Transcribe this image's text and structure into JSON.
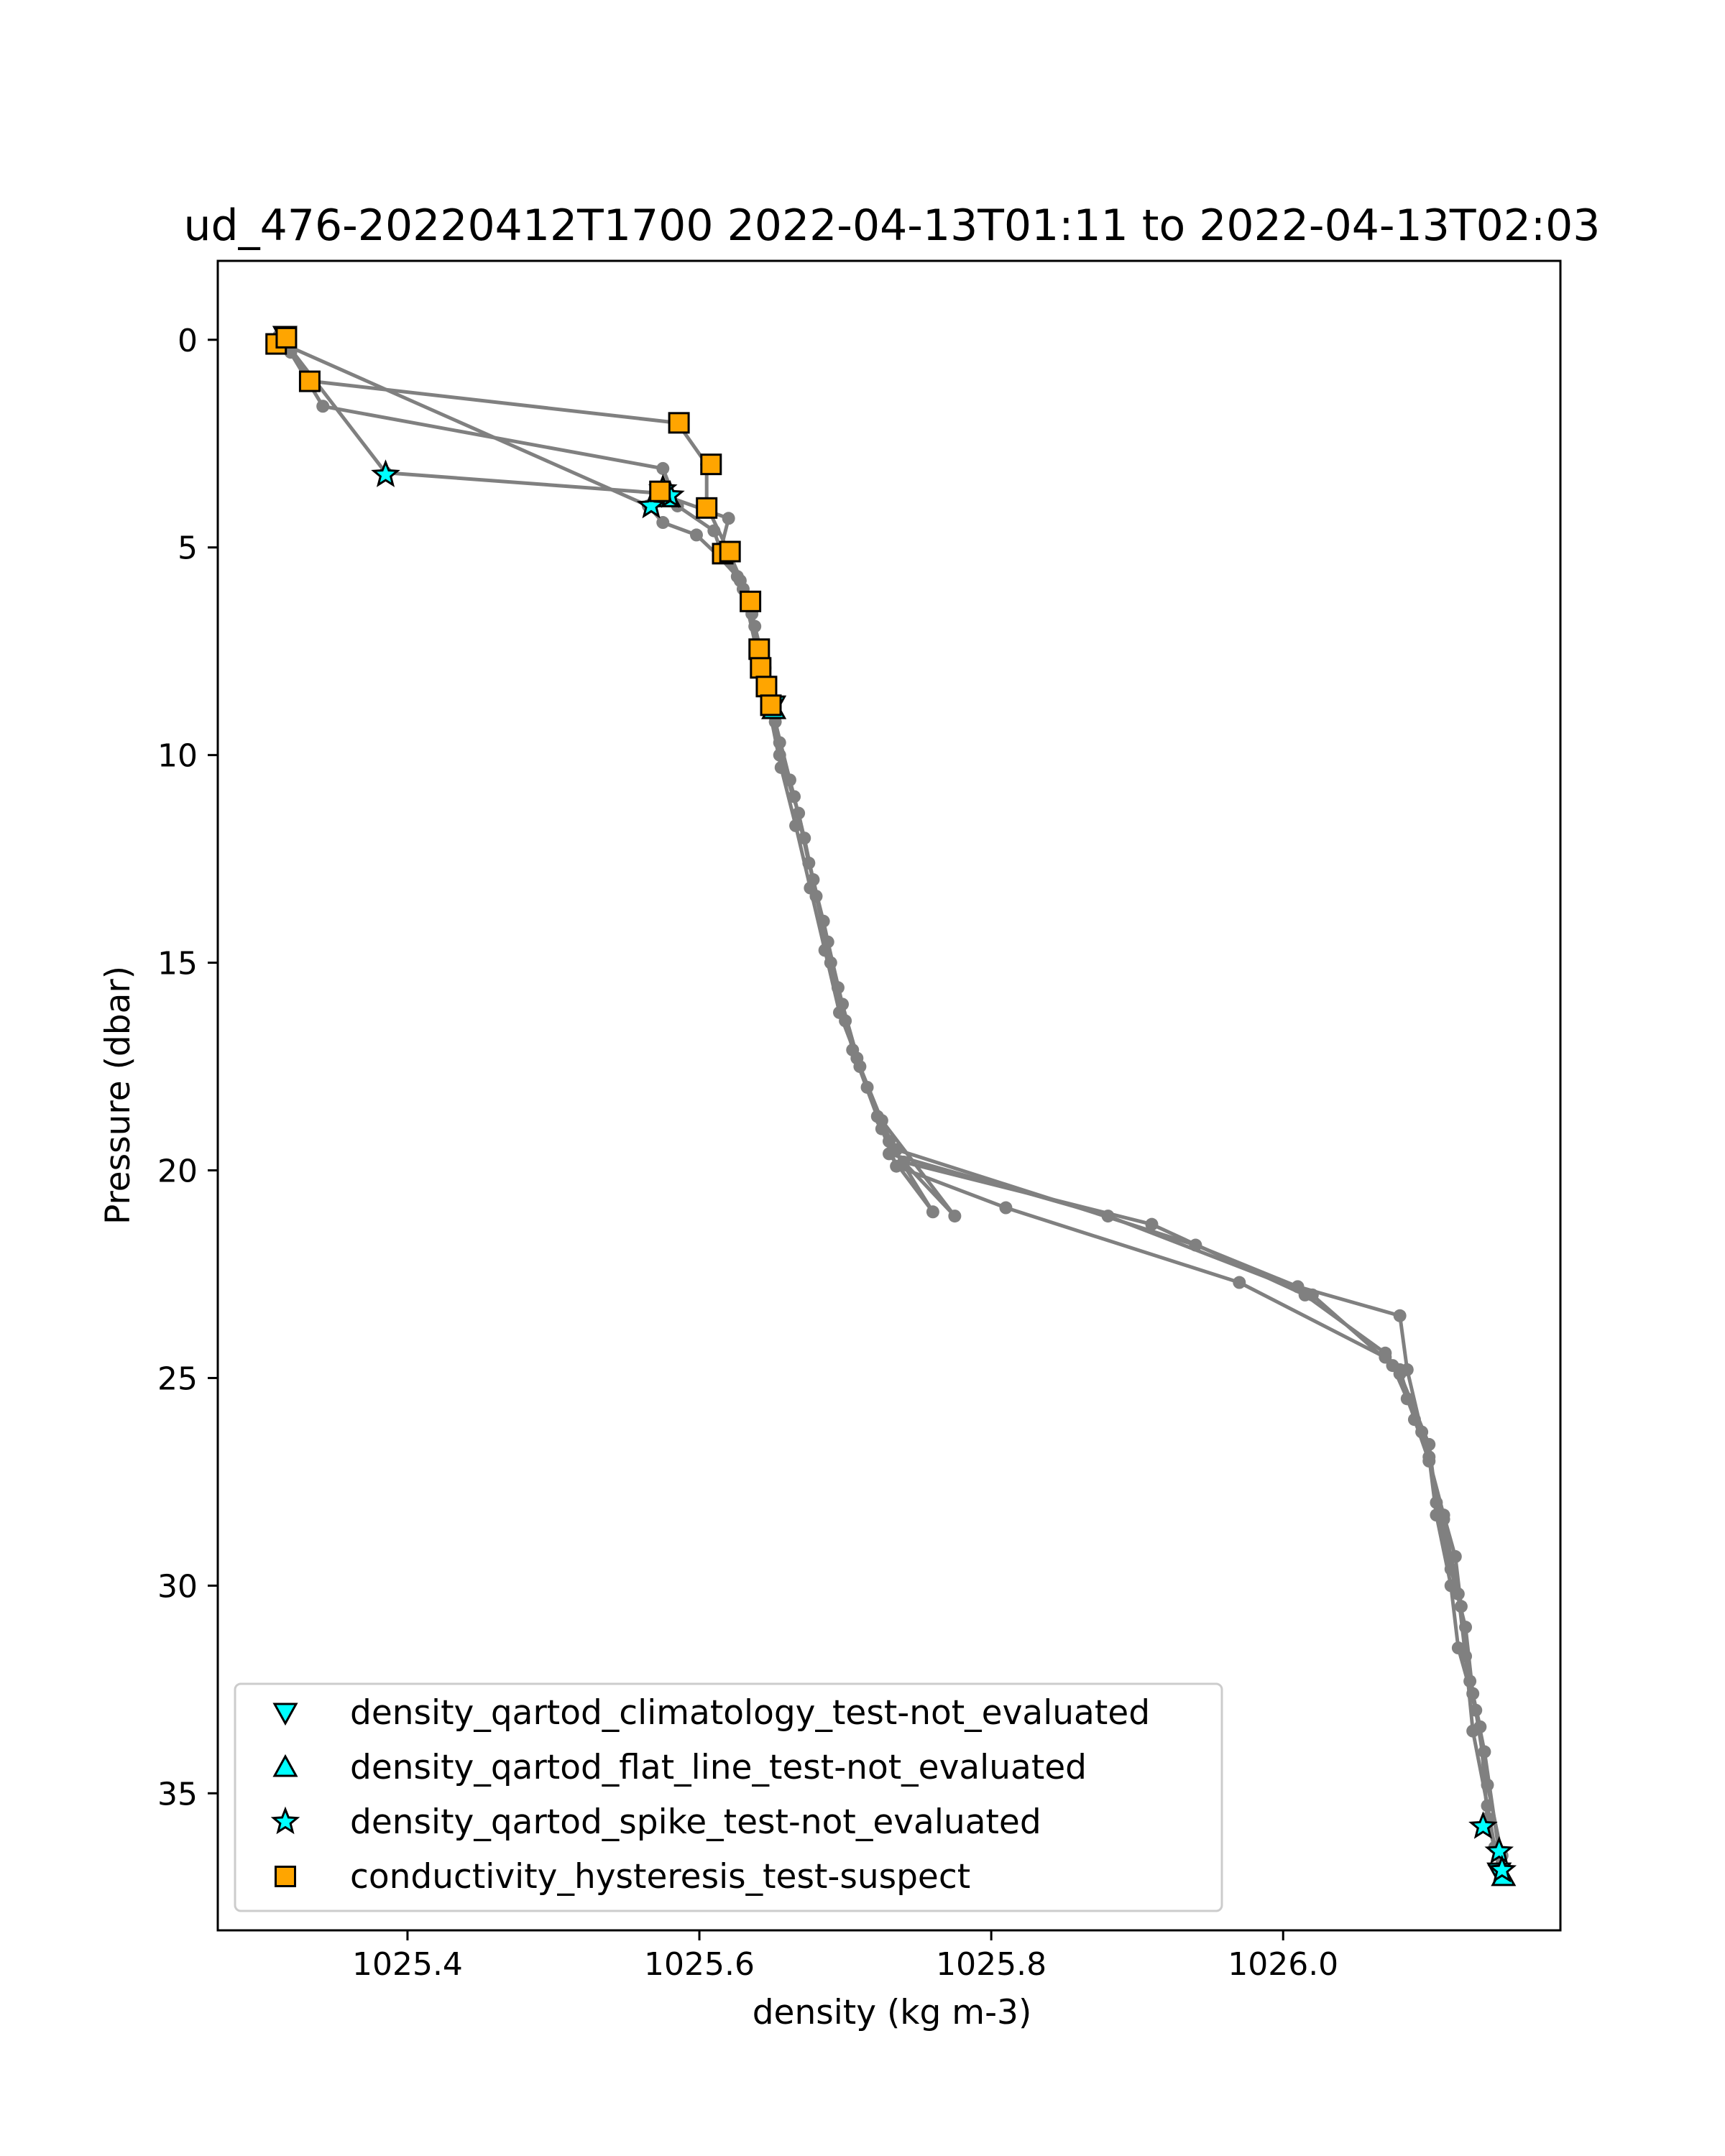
{
  "chart_data": {
    "type": "scatter",
    "title": "ud_476-20220412T1700 2022-04-13T01:11 to 2022-04-13T02:03",
    "xlabel": "density (kg m-3)",
    "ylabel": "Pressure (dbar)",
    "xlim": [
      1025.27,
      1026.19
    ],
    "ylim": [
      38.3,
      -1.9
    ],
    "y_inverted": true,
    "xticks": [
      1025.4,
      1025.6,
      1025.8,
      1026.0
    ],
    "xtick_labels": [
      "1025.4",
      "1025.6",
      "1025.8",
      "1026.0"
    ],
    "yticks": [
      0,
      5,
      10,
      15,
      20,
      25,
      30,
      35
    ],
    "ytick_labels": [
      "0",
      "5",
      "10",
      "15",
      "20",
      "25",
      "30",
      "35"
    ],
    "grid": false,
    "legend_position": "lower-left",
    "colors": {
      "profile_line": "#808080",
      "flag_cyan": "#00ffff",
      "flag_orange": "#ffa500",
      "marker_edge": "#000000"
    },
    "profiles": [
      {
        "points": [
          [
            1025.315,
            0.0
          ],
          [
            1025.32,
            0.3
          ],
          [
            1025.335,
            1.0
          ],
          [
            1025.585,
            2.0
          ],
          [
            1025.605,
            3.0
          ],
          [
            1025.605,
            4.0
          ],
          [
            1025.62,
            5.1
          ],
          [
            1025.635,
            6.3
          ],
          [
            1025.64,
            7.4
          ],
          [
            1025.645,
            8.4
          ],
          [
            1025.65,
            8.8
          ],
          [
            1025.655,
            9.7
          ],
          [
            1025.665,
            11.0
          ],
          [
            1025.675,
            12.6
          ],
          [
            1025.685,
            14.0
          ],
          [
            1025.695,
            15.6
          ],
          [
            1025.705,
            17.1
          ],
          [
            1025.725,
            19.0
          ],
          [
            1025.735,
            19.9
          ],
          [
            1025.81,
            20.9
          ],
          [
            1025.97,
            22.7
          ],
          [
            1026.07,
            24.5
          ],
          [
            1026.08,
            24.8
          ],
          [
            1026.09,
            26.0
          ],
          [
            1026.1,
            27.0
          ],
          [
            1026.11,
            28.4
          ],
          [
            1026.12,
            30.2
          ],
          [
            1026.125,
            31.7
          ],
          [
            1026.13,
            33.5
          ],
          [
            1026.14,
            35.3
          ],
          [
            1026.145,
            36.3
          ]
        ]
      },
      {
        "points": [
          [
            1025.312,
            -0.1
          ],
          [
            1025.318,
            0.2
          ],
          [
            1025.342,
            1.6
          ],
          [
            1025.575,
            3.1
          ],
          [
            1025.585,
            4.0
          ],
          [
            1025.61,
            4.6
          ],
          [
            1025.615,
            5.1
          ],
          [
            1025.63,
            6.0
          ],
          [
            1025.64,
            7.6
          ],
          [
            1025.645,
            8.3
          ],
          [
            1025.652,
            9.2
          ],
          [
            1025.662,
            10.6
          ],
          [
            1025.672,
            12.0
          ],
          [
            1025.68,
            13.4
          ],
          [
            1025.69,
            15.0
          ],
          [
            1025.7,
            16.4
          ],
          [
            1025.715,
            18.0
          ],
          [
            1025.73,
            19.3
          ],
          [
            1025.76,
            21.0
          ],
          [
            1025.73,
            19.6
          ],
          [
            1025.88,
            21.1
          ],
          [
            1026.02,
            23.0
          ],
          [
            1026.075,
            24.7
          ],
          [
            1026.085,
            25.5
          ],
          [
            1026.1,
            26.9
          ],
          [
            1026.105,
            28.3
          ],
          [
            1026.115,
            30.0
          ],
          [
            1026.12,
            31.5
          ],
          [
            1026.132,
            33.0
          ],
          [
            1026.14,
            34.8
          ],
          [
            1026.15,
            36.5
          ]
        ]
      },
      {
        "points": [
          [
            1025.31,
            0.1
          ],
          [
            1025.315,
            0.0
          ],
          [
            1025.385,
            3.2
          ],
          [
            1025.575,
            3.7
          ],
          [
            1025.58,
            3.8
          ],
          [
            1025.62,
            4.3
          ],
          [
            1025.615,
            5.0
          ],
          [
            1025.628,
            5.8
          ],
          [
            1025.638,
            6.9
          ],
          [
            1025.645,
            7.9
          ],
          [
            1025.648,
            8.6
          ],
          [
            1025.655,
            10.0
          ],
          [
            1025.668,
            11.4
          ],
          [
            1025.678,
            13.0
          ],
          [
            1025.688,
            14.5
          ],
          [
            1025.698,
            16.0
          ],
          [
            1025.71,
            17.5
          ],
          [
            1025.725,
            18.8
          ],
          [
            1025.775,
            21.1
          ],
          [
            1025.74,
            19.8
          ],
          [
            1025.91,
            21.3
          ],
          [
            1026.015,
            23.0
          ],
          [
            1026.07,
            24.4
          ],
          [
            1026.08,
            24.9
          ],
          [
            1026.1,
            26.6
          ],
          [
            1026.105,
            28.0
          ],
          [
            1026.115,
            29.6
          ],
          [
            1026.125,
            31.0
          ],
          [
            1026.13,
            32.6
          ],
          [
            1026.138,
            34.0
          ],
          [
            1026.15,
            36.9
          ]
        ]
      },
      {
        "points": [
          [
            1025.318,
            -0.05
          ],
          [
            1025.318,
            0.15
          ],
          [
            1025.565,
            4.0
          ],
          [
            1025.575,
            4.4
          ],
          [
            1025.598,
            4.7
          ],
          [
            1025.613,
            5.2
          ],
          [
            1025.626,
            5.7
          ],
          [
            1025.636,
            6.6
          ],
          [
            1025.642,
            7.5
          ],
          [
            1025.648,
            8.9
          ],
          [
            1025.656,
            10.3
          ],
          [
            1025.666,
            11.7
          ],
          [
            1025.676,
            13.2
          ],
          [
            1025.686,
            14.7
          ],
          [
            1025.696,
            16.2
          ],
          [
            1025.708,
            17.3
          ],
          [
            1025.722,
            18.7
          ],
          [
            1025.735,
            19.5
          ],
          [
            1025.94,
            21.8
          ],
          [
            1026.01,
            22.8
          ],
          [
            1026.08,
            23.5
          ],
          [
            1026.085,
            24.8
          ],
          [
            1026.095,
            26.3
          ],
          [
            1026.11,
            28.3
          ],
          [
            1026.118,
            29.3
          ],
          [
            1026.122,
            30.5
          ],
          [
            1026.128,
            32.3
          ],
          [
            1026.135,
            33.4
          ],
          [
            1026.14,
            35.6
          ],
          [
            1026.148,
            36.8
          ]
        ]
      }
    ],
    "flags": [
      {
        "name": "density_qartod_climatology_test-not_evaluated",
        "marker": "triangle-down",
        "color": "#00ffff",
        "points": [
          [
            1025.316,
            -0.1
          ],
          [
            1025.651,
            8.8
          ],
          [
            1026.148,
            36.9
          ]
        ]
      },
      {
        "name": "density_qartod_flat_line_test-not_evaluated",
        "marker": "triangle-up",
        "color": "#00ffff",
        "points": [
          [
            1025.579,
            3.8
          ],
          [
            1025.651,
            8.9
          ],
          [
            1026.151,
            37.0
          ]
        ]
      },
      {
        "name": "density_qartod_spike_test-not_evaluated",
        "marker": "star",
        "color": "#00ffff",
        "points": [
          [
            1025.385,
            3.25
          ],
          [
            1025.567,
            4.0
          ],
          [
            1025.58,
            3.75
          ],
          [
            1025.575,
            3.6
          ],
          [
            1026.137,
            35.8
          ],
          [
            1026.148,
            36.4
          ],
          [
            1026.15,
            36.85
          ]
        ]
      },
      {
        "name": "conductivity_hysteresis_test-suspect",
        "marker": "square",
        "color": "#ffa500",
        "points": [
          [
            1025.31,
            0.1
          ],
          [
            1025.317,
            -0.05
          ],
          [
            1025.333,
            1.0
          ],
          [
            1025.586,
            2.0
          ],
          [
            1025.608,
            3.0
          ],
          [
            1025.573,
            3.65
          ],
          [
            1025.605,
            4.05
          ],
          [
            1025.616,
            5.15
          ],
          [
            1025.621,
            5.1
          ],
          [
            1025.635,
            6.3
          ],
          [
            1025.641,
            7.45
          ],
          [
            1025.642,
            7.9
          ],
          [
            1025.646,
            8.35
          ],
          [
            1025.649,
            8.8
          ]
        ]
      }
    ],
    "legend": [
      {
        "label": "density_qartod_climatology_test-not_evaluated",
        "marker": "triangle-down",
        "color": "#00ffff"
      },
      {
        "label": "density_qartod_flat_line_test-not_evaluated",
        "marker": "triangle-up",
        "color": "#00ffff"
      },
      {
        "label": "density_qartod_spike_test-not_evaluated",
        "marker": "star",
        "color": "#00ffff"
      },
      {
        "label": "conductivity_hysteresis_test-suspect",
        "marker": "square",
        "color": "#ffa500"
      }
    ]
  }
}
